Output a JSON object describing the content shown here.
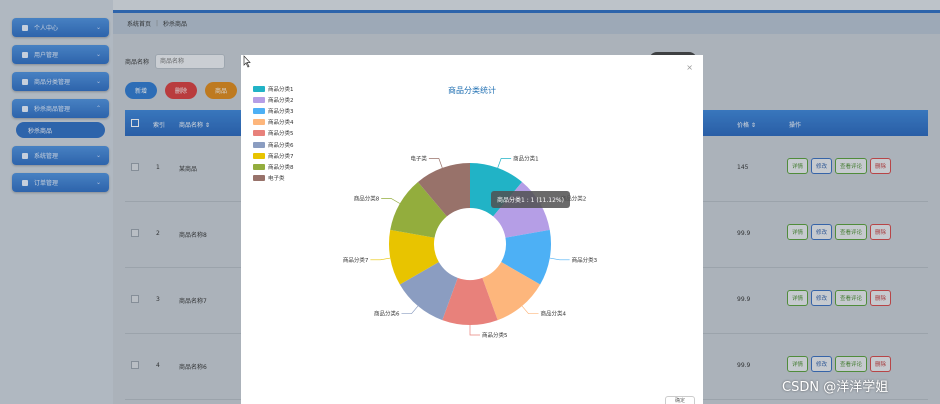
{
  "sidebar": {
    "items": [
      {
        "label": "个人中心"
      },
      {
        "label": "用户管理"
      },
      {
        "label": "商品分类管理"
      },
      {
        "label": "秒杀商品管理",
        "sub": "秒杀商品"
      },
      {
        "label": "系统管理"
      },
      {
        "label": "订单管理"
      }
    ]
  },
  "breadcrumb": {
    "home": "系统首页",
    "current": "秒杀商品"
  },
  "search": {
    "label": "商品名称",
    "placeholder": "商品名称"
  },
  "toolbar": {
    "add": "新增",
    "delete": "删除",
    "stat": "商品"
  },
  "table": {
    "headers": {
      "index": "索引",
      "name": "商品名称 ⇕",
      "price": "价格 ⇕",
      "ops": "操作"
    },
    "rows": [
      {
        "index": "1",
        "name": "某商品",
        "price": "145"
      },
      {
        "index": "2",
        "name": "商品名称8",
        "price": "99.9"
      },
      {
        "index": "3",
        "name": "商品名称7",
        "price": "99.9"
      },
      {
        "index": "4",
        "name": "商品名称6",
        "price": "99.9"
      }
    ],
    "op_labels": {
      "detail": "详情",
      "edit": "修改",
      "comment": "查看评论",
      "delete": "删除"
    }
  },
  "modal": {
    "close": "×",
    "confirm": "确定",
    "tooltip": "商品分类1 : 1 (11.12%)"
  },
  "chart_data": {
    "type": "pie",
    "title": "商品分类统计",
    "legend_position": "top-left",
    "donut": true,
    "slices": [
      {
        "name": "商品分类1",
        "value": 1,
        "color": "#21b3c6"
      },
      {
        "name": "商品分类2",
        "value": 1,
        "color": "#b59ee6"
      },
      {
        "name": "商品分类3",
        "value": 1,
        "color": "#4db0f5"
      },
      {
        "name": "商品分类4",
        "value": 1,
        "color": "#fdb67c"
      },
      {
        "name": "商品分类5",
        "value": 1,
        "color": "#e8817b"
      },
      {
        "name": "商品分类6",
        "value": 1,
        "color": "#8b9dc1"
      },
      {
        "name": "商品分类7",
        "value": 1,
        "color": "#e8c400"
      },
      {
        "name": "商品分类8",
        "value": 1,
        "color": "#93ad3d"
      },
      {
        "name": "电子类",
        "value": 1,
        "color": "#98726a"
      }
    ]
  },
  "watermark": "CSDN @洋洋学姐"
}
